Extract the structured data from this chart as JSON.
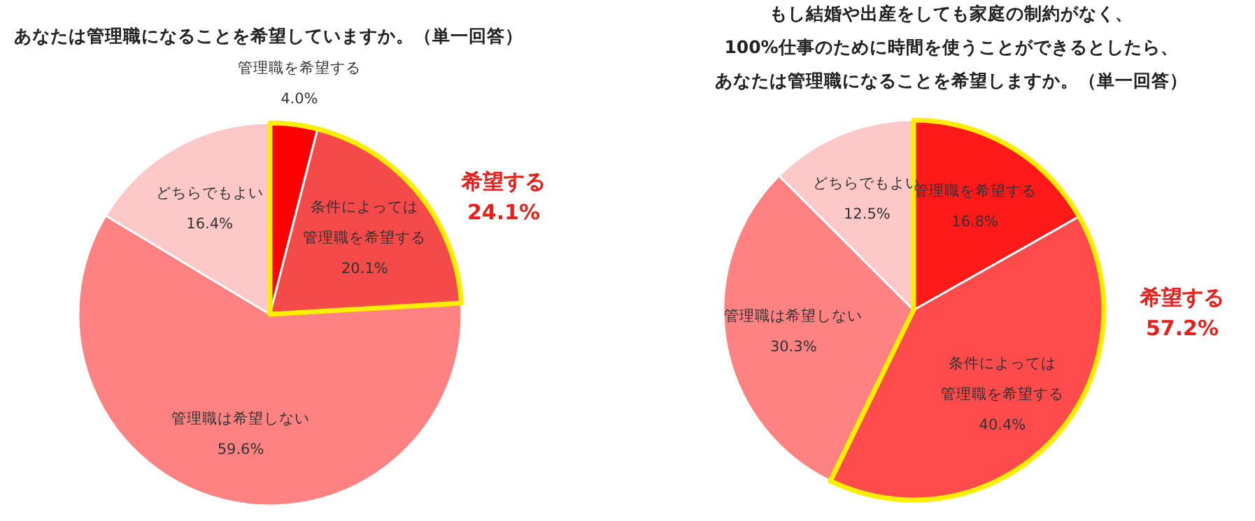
{
  "chart_data": [
    {
      "type": "pie",
      "title": "あなたは管理職になることを希望していますか。（単一回答）",
      "categories": [
        "管理職を希望する",
        "条件によっては管理職を希望する",
        "管理職は希望しない",
        "どちらでもよい"
      ],
      "values": [
        4.0,
        20.1,
        59.6,
        16.4
      ],
      "value_labels": [
        "4.0%",
        "20.1%",
        "59.6%",
        "16.4%"
      ],
      "colors": [
        "#ff0000",
        "#f44a4a",
        "#ff8282",
        "#fcc8c8"
      ],
      "annotations": [
        "希望する 24.1%"
      ]
    },
    {
      "type": "pie",
      "title": "もし結婚や出産をしても家庭の制約がなく、100%仕事のために時間を使うことができるとしたら、あなたは管理職になることを希望しますか。（単一回答）",
      "categories": [
        "管理職を希望する",
        "条件によっては管理職を希望する",
        "管理職は希望しない",
        "どちらでもよい"
      ],
      "values": [
        16.8,
        40.4,
        30.3,
        12.5
      ],
      "value_labels": [
        "16.8%",
        "40.4%",
        "30.3%",
        "12.5%"
      ],
      "colors": [
        "#ff1a1a",
        "#ff4b4b",
        "#ff8282",
        "#fcc8c8"
      ],
      "annotations": [
        "希望する 57.2%"
      ]
    }
  ]
}
